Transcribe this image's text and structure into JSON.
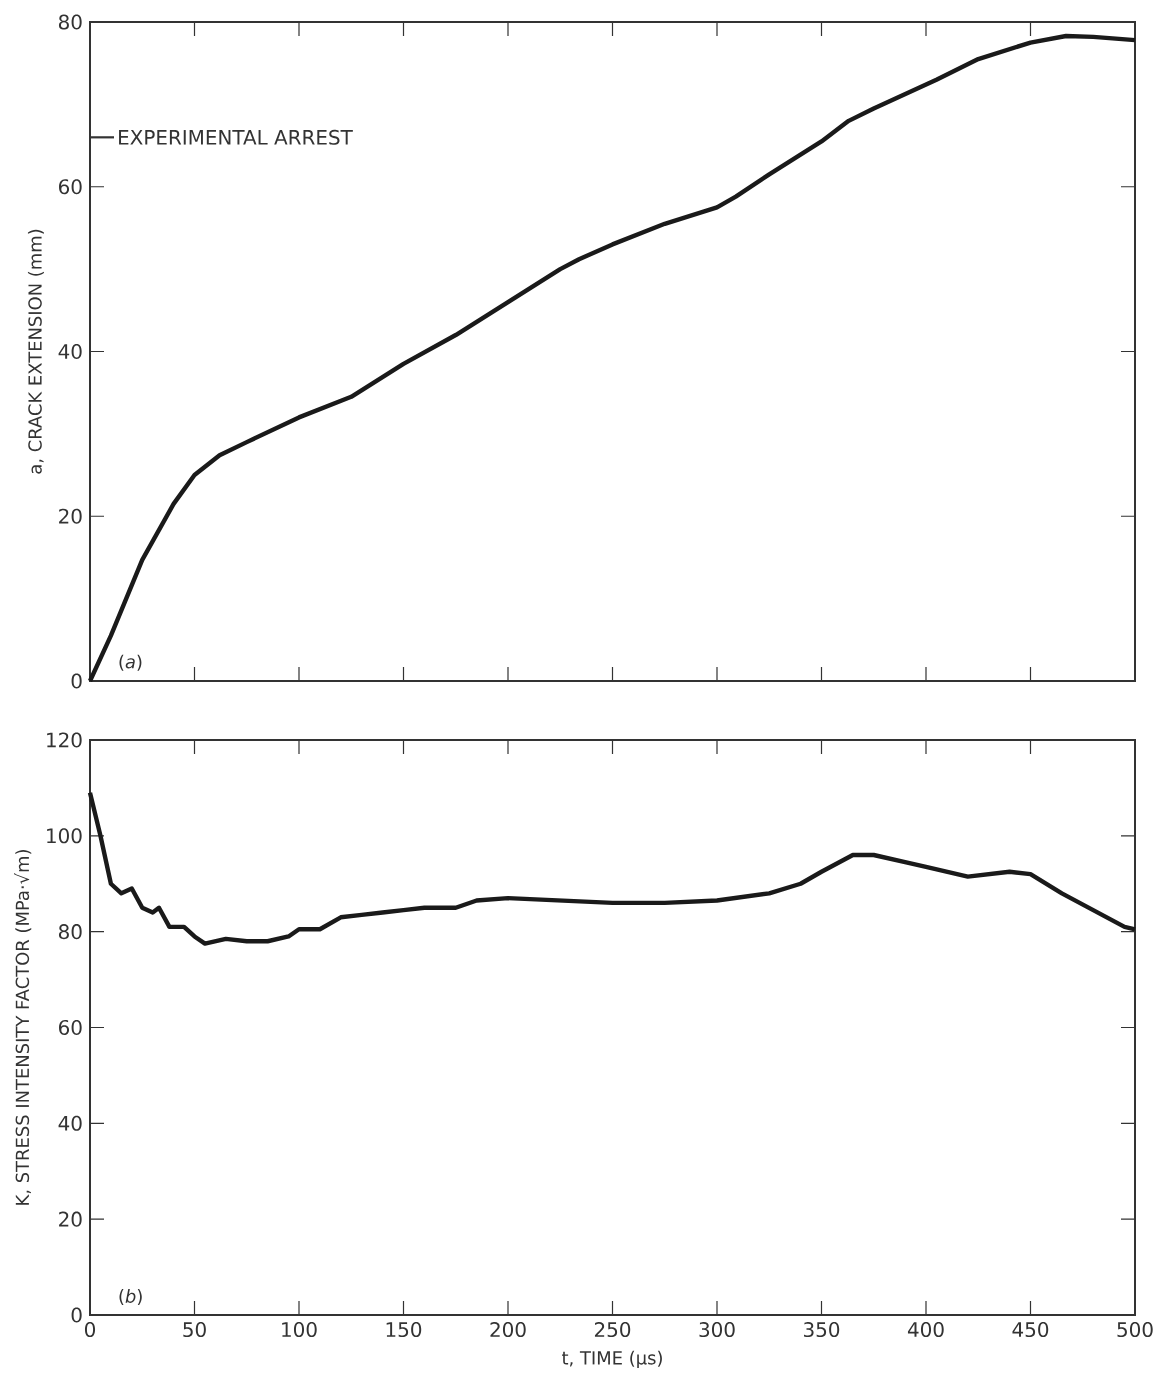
{
  "chart_data": [
    {
      "type": "line",
      "ylabel": "a, CRACK EXTENSION (mm)",
      "color": "#1a1a1a",
      "marker": "none",
      "line_style": "solid",
      "x": [
        0,
        10,
        25,
        40,
        50,
        62,
        75,
        100,
        125,
        150,
        175,
        200,
        225,
        234,
        250,
        275,
        300,
        309,
        325,
        350,
        363,
        375,
        405,
        425,
        450,
        467,
        480,
        500
      ],
      "values": [
        0,
        5.5,
        14.7,
        21.5,
        25,
        27.4,
        29,
        32,
        34.5,
        38.5,
        42,
        46,
        50,
        51.2,
        53,
        55.5,
        57.5,
        58.8,
        61.5,
        65.5,
        68,
        69.5,
        73,
        75.5,
        77.5,
        78.3,
        78.2,
        77.8
      ],
      "xlim": [
        0,
        500
      ],
      "ylim": [
        0,
        80
      ],
      "xticks": [
        0,
        50,
        100,
        150,
        200,
        250,
        300,
        350,
        400,
        450,
        500
      ],
      "yticks": [
        0,
        20,
        40,
        60,
        80
      ],
      "tick_labels": "y",
      "ref_lines": [
        {
          "axis": "y",
          "value": 66,
          "label": "EXPERIMENTAL ARREST"
        }
      ],
      "annotations": [
        "(*a*)"
      ]
    },
    {
      "type": "line",
      "ylabel": "K, STRESS INTENSITY FACTOR (MPa·√m)",
      "xlabel": "t, TIME (μs)",
      "color": "#1a1a1a",
      "marker": "none",
      "line_style": "solid",
      "x": [
        0,
        5,
        10,
        15,
        20,
        25,
        30,
        33,
        38,
        45,
        50,
        55,
        65,
        75,
        85,
        95,
        100,
        110,
        120,
        130,
        140,
        150,
        160,
        175,
        185,
        200,
        225,
        250,
        275,
        300,
        325,
        340,
        350,
        365,
        375,
        390,
        400,
        420,
        440,
        450,
        465,
        480,
        495,
        500
      ],
      "values": [
        109,
        100,
        90,
        88,
        89,
        85,
        84,
        85,
        81,
        81,
        79,
        77.5,
        78.5,
        78,
        78,
        79,
        80.5,
        80.5,
        83,
        83.5,
        84,
        84.5,
        85,
        85,
        86.5,
        87,
        86.5,
        86,
        86,
        86.5,
        88,
        90,
        92.5,
        96,
        96,
        94.5,
        93.5,
        91.5,
        92.5,
        92,
        88,
        84.5,
        81,
        80.5
      ],
      "xlim": [
        0,
        500
      ],
      "ylim": [
        0,
        120
      ],
      "xticks": [
        0,
        50,
        100,
        150,
        200,
        250,
        300,
        350,
        400,
        450,
        500
      ],
      "yticks": [
        0,
        20,
        40,
        60,
        80,
        100,
        120
      ],
      "annotations": [
        "(*b*)"
      ]
    }
  ]
}
